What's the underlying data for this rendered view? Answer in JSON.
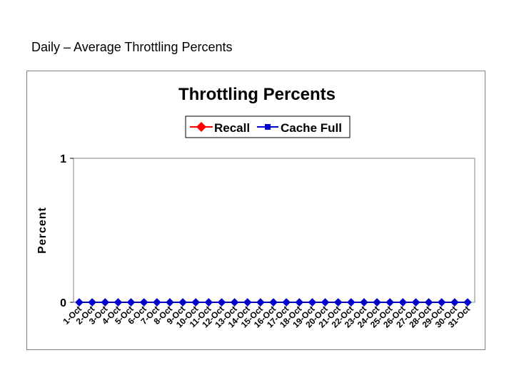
{
  "slide": {
    "title": "Daily – Average Throttling Percents"
  },
  "chart_data": {
    "type": "line",
    "title": "Throttling Percents",
    "xlabel": "",
    "ylabel": "Percent",
    "ylim": [
      0,
      1
    ],
    "yticks": [
      "0",
      "1"
    ],
    "grid": false,
    "legend_position": "top",
    "categories": [
      "1-Oct",
      "2-Oct",
      "3-Oct",
      "4-Oct",
      "5-Oct",
      "6-Oct",
      "7-Oct",
      "8-Oct",
      "9-Oct",
      "10-Oct",
      "11-Oct",
      "12-Oct",
      "13-Oct",
      "14-Oct",
      "15-Oct",
      "16-Oct",
      "17-Oct",
      "18-Oct",
      "19-Oct",
      "20-Oct",
      "21-Oct",
      "22-Oct",
      "23-Oct",
      "24-Oct",
      "25-Oct",
      "26-Oct",
      "27-Oct",
      "28-Oct",
      "29-Oct",
      "30-Oct",
      "31-Oct"
    ],
    "series": [
      {
        "name": "Recall",
        "color": "#ff0000",
        "marker": "diamond",
        "values": [
          0,
          0,
          0,
          0,
          0,
          0,
          0,
          0,
          0,
          0,
          0,
          0,
          0,
          0,
          0,
          0,
          0,
          0,
          0,
          0,
          0,
          0,
          0,
          0,
          0,
          0,
          0,
          0,
          0,
          0,
          0
        ]
      },
      {
        "name": "Cache Full",
        "color": "#0000cc",
        "marker": "square",
        "values": [
          0,
          0,
          0,
          0,
          0,
          0,
          0,
          0,
          0,
          0,
          0,
          0,
          0,
          0,
          0,
          0,
          0,
          0,
          0,
          0,
          0,
          0,
          0,
          0,
          0,
          0,
          0,
          0,
          0,
          0,
          0
        ]
      }
    ],
    "colors": {
      "plot_border": "#808080",
      "axis": "#000000",
      "marker_fill": "#0000cc"
    }
  }
}
